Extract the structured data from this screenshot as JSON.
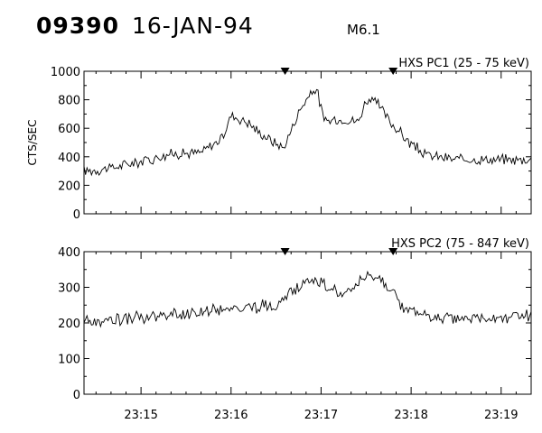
{
  "header": {
    "event_id": "09390",
    "date": "16-JAN-94",
    "flare_class": "M6.1"
  },
  "chart_data": [
    {
      "type": "line",
      "title": "HXS PC1 (25 - 75 keV)",
      "ylabel": "CTS/SEC",
      "xlabel": "",
      "ylim": [
        0,
        1000
      ],
      "yticks": [
        0,
        200,
        400,
        600,
        800,
        1000
      ],
      "xlim": [
        "23:14:22",
        "23:19:20"
      ],
      "xticks": [
        "23:15",
        "23:16",
        "23:17",
        "23:18",
        "23:19"
      ],
      "markers": [
        "23:16:36",
        "23:17:48"
      ],
      "grid": false,
      "series": [
        {
          "time": [
            "23:14:22",
            "23:14:40",
            "23:15:00",
            "23:15:20",
            "23:15:40",
            "23:15:54",
            "23:16:00",
            "23:16:10",
            "23:16:20",
            "23:16:35",
            "23:16:45",
            "23:16:50",
            "23:16:57",
            "23:17:02",
            "23:17:15",
            "23:17:25",
            "23:17:30",
            "23:17:37",
            "23:17:45",
            "23:17:50",
            "23:18:00",
            "23:18:10",
            "23:18:30",
            "23:19:00",
            "23:19:20"
          ],
          "values": [
            300,
            320,
            370,
            420,
            430,
            530,
            690,
            650,
            560,
            460,
            710,
            800,
            880,
            650,
            660,
            650,
            800,
            780,
            660,
            600,
            490,
            410,
            380,
            380,
            380
          ]
        }
      ]
    },
    {
      "type": "line",
      "title": "HXS PC2 (75 - 847 keV)",
      "ylabel": "",
      "xlabel": "",
      "ylim": [
        0,
        400
      ],
      "yticks": [
        0,
        100,
        200,
        300,
        400
      ],
      "xlim": [
        "23:14:22",
        "23:19:20"
      ],
      "xticks": [
        "23:15",
        "23:16",
        "23:17",
        "23:18",
        "23:19"
      ],
      "markers": [
        "23:16:36",
        "23:17:48"
      ],
      "grid": false,
      "series": [
        {
          "time": [
            "23:14:22",
            "23:15:00",
            "23:15:30",
            "23:16:00",
            "23:16:30",
            "23:16:45",
            "23:16:55",
            "23:17:05",
            "23:17:15",
            "23:17:25",
            "23:17:35",
            "23:17:45",
            "23:17:55",
            "23:18:10",
            "23:18:30",
            "23:19:00",
            "23:19:20"
          ],
          "values": [
            205,
            215,
            225,
            240,
            250,
            300,
            320,
            300,
            270,
            310,
            330,
            300,
            240,
            220,
            210,
            215,
            220
          ]
        }
      ]
    }
  ]
}
